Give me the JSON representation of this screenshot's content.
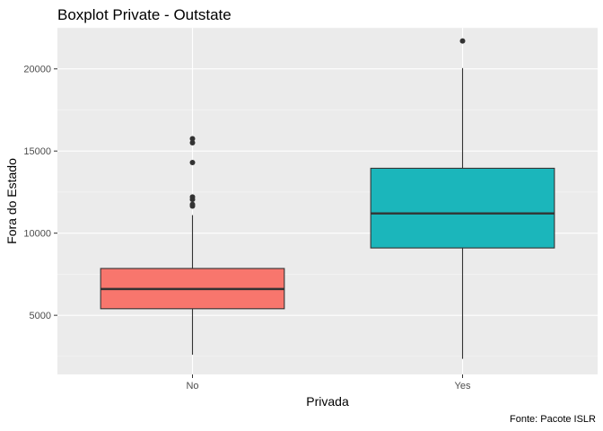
{
  "chart_data": {
    "type": "boxplot",
    "title": "Boxplot Private - Outstate",
    "xlabel": "Privada",
    "ylabel": "Fora do Estado",
    "caption": "Fonte: Pacote ISLR",
    "categories": [
      "No",
      "Yes"
    ],
    "ylim": [
      1400,
      22500
    ],
    "yticks": [
      5000,
      10000,
      15000,
      20000
    ],
    "ytick_labels": [
      "5000",
      "10000",
      "15000",
      "20000"
    ],
    "grid": true,
    "boxes": [
      {
        "category": "No",
        "fill": "#F8766D",
        "whisker_low": 2600,
        "q1": 5400,
        "median": 6600,
        "q3": 7850,
        "whisker_high": 11100,
        "outliers": [
          11650,
          11750,
          12050,
          12200,
          14300,
          15500,
          15750
        ]
      },
      {
        "category": "Yes",
        "fill": "#1BB6BB",
        "whisker_low": 2350,
        "q1": 9100,
        "median": 11200,
        "q3": 13950,
        "whisker_high": 20050,
        "outliers": [
          21700
        ]
      }
    ]
  }
}
